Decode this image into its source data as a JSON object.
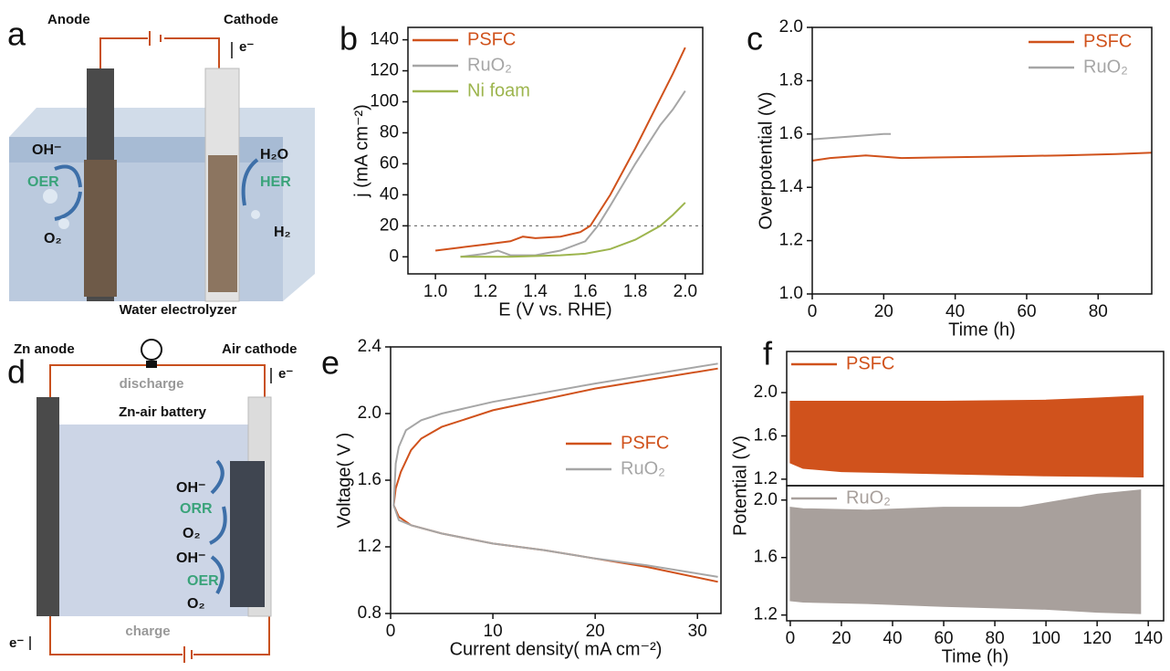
{
  "chart_data": [
    {
      "type": "line",
      "panel": "b",
      "xlabel": "E (V vs. RHE)",
      "ylabel": "j (mA cm⁻²)",
      "xlim": [
        0.89,
        2.07
      ],
      "ylim": [
        -11,
        148
      ],
      "xticks": [
        {
          "value": 1,
          "label": "1.0"
        },
        1.2,
        1.4,
        1.6,
        1.8,
        {
          "value": 2,
          "label": "2.0"
        }
      ],
      "yticks": [
        0,
        20,
        40,
        60,
        80,
        100,
        120,
        140
      ],
      "hline": 20,
      "legend": "upper left",
      "series": [
        {
          "name": "PSFC",
          "color": "#d0521c",
          "x": [
            1.0,
            1.1,
            1.2,
            1.3,
            1.35,
            1.4,
            1.5,
            1.58,
            1.62,
            1.7,
            1.8,
            1.9,
            1.95,
            2.0
          ],
          "values": [
            4,
            6,
            8,
            10,
            13,
            12,
            13,
            16,
            20,
            40,
            70,
            102,
            118,
            135
          ]
        },
        {
          "name": "RuO₂",
          "color": "#a6a6a6",
          "x": [
            1.1,
            1.2,
            1.25,
            1.3,
            1.4,
            1.5,
            1.6,
            1.65,
            1.7,
            1.8,
            1.9,
            1.95,
            2.0
          ],
          "values": [
            0,
            2,
            4,
            1,
            1,
            4,
            10,
            20,
            33,
            60,
            85,
            95,
            107
          ]
        },
        {
          "name": "Ni foam",
          "color": "#9db54e",
          "x": [
            1.1,
            1.3,
            1.5,
            1.6,
            1.7,
            1.8,
            1.9,
            1.95,
            2.0
          ],
          "values": [
            0,
            0,
            1,
            2,
            5,
            11,
            20,
            27,
            35
          ]
        }
      ]
    },
    {
      "type": "line",
      "panel": "c",
      "xlabel": "Time (h)",
      "ylabel": "Overpotential (V)",
      "xlim": [
        0,
        95
      ],
      "ylim": [
        1.0,
        2.0
      ],
      "xticks": [
        0,
        20,
        40,
        60,
        80
      ],
      "yticks": [
        {
          "value": 1,
          "label": "1.0"
        },
        1.2,
        1.4,
        1.6,
        1.8,
        {
          "value": 2,
          "label": "2.0"
        }
      ],
      "legend": "upper right",
      "series": [
        {
          "name": "PSFC",
          "color": "#d0521c",
          "x": [
            0,
            5,
            15,
            25,
            50,
            70,
            85,
            95
          ],
          "values": [
            1.5,
            1.51,
            1.52,
            1.51,
            1.515,
            1.52,
            1.525,
            1.53
          ]
        },
        {
          "name": "RuO₂",
          "color": "#a6a6a6",
          "x": [
            0,
            10,
            20,
            22
          ],
          "values": [
            1.58,
            1.59,
            1.6,
            1.6
          ]
        }
      ]
    },
    {
      "type": "line",
      "panel": "e",
      "xlabel": "Current density( mA cm⁻²)",
      "ylabel": "Voltage( V )",
      "xlim": [
        0,
        32.3
      ],
      "ylim": [
        0.8,
        2.4
      ],
      "xticks": [
        0,
        10,
        20,
        30
      ],
      "yticks": [
        0.8,
        1.2,
        1.6,
        {
          "value": 2,
          "label": "2.0"
        },
        2.4
      ],
      "legend": "center right",
      "series": [
        {
          "name": "PSFC",
          "color": "#d0521c",
          "x": [
            32,
            25,
            20,
            15,
            10,
            5,
            2,
            0.8,
            0.3,
            0.5,
            1,
            2,
            3,
            5,
            10,
            20,
            32
          ],
          "values": [
            0.99,
            1.08,
            1.13,
            1.18,
            1.22,
            1.28,
            1.33,
            1.38,
            1.45,
            1.55,
            1.65,
            1.78,
            1.85,
            1.92,
            2.02,
            2.15,
            2.27
          ]
        },
        {
          "name": "RuO₂",
          "color": "#a6a6a6",
          "x": [
            32,
            25,
            20,
            15,
            10,
            5,
            2,
            0.8,
            0.3,
            0.5,
            0.8,
            1.5,
            3,
            5,
            10,
            20,
            32
          ],
          "values": [
            1.02,
            1.09,
            1.13,
            1.18,
            1.22,
            1.28,
            1.33,
            1.36,
            1.45,
            1.7,
            1.8,
            1.9,
            1.96,
            2.0,
            2.07,
            2.18,
            2.3
          ]
        }
      ]
    },
    {
      "type": "band",
      "panel": "f",
      "xlim": [
        -1.4,
        146
      ],
      "ylim": [
        1.14,
        2.38
      ],
      "yticks": [
        1.2,
        1.6,
        {
          "value": 2,
          "label": "2.0"
        }
      ],
      "legend": "upper left",
      "series": [
        {
          "name": "PSFC",
          "color": "#d0521c",
          "x": [
            0,
            5,
            20,
            60,
            100,
            120,
            138
          ],
          "upper": [
            1.92,
            1.92,
            1.92,
            1.92,
            1.93,
            1.95,
            1.97
          ],
          "lower": [
            1.35,
            1.3,
            1.27,
            1.25,
            1.23,
            1.225,
            1.22
          ]
        }
      ]
    },
    {
      "type": "band",
      "xlabel": "Time (h)",
      "ylabel": "Potential (V)",
      "xlim": [
        -1.4,
        146
      ],
      "ylim": [
        1.16,
        2.1
      ],
      "xticks": [
        0,
        20,
        40,
        60,
        80,
        100,
        120,
        140
      ],
      "yticks": [
        1.2,
        1.6,
        {
          "value": 2,
          "label": "2.0"
        }
      ],
      "legend": "upper left",
      "series": [
        {
          "name": "RuO₂",
          "color": "#a8a09c",
          "x": [
            0,
            5,
            30,
            60,
            90,
            100,
            120,
            137
          ],
          "upper": [
            1.95,
            1.94,
            1.93,
            1.95,
            1.95,
            1.98,
            2.04,
            2.07
          ],
          "lower": [
            1.3,
            1.29,
            1.28,
            1.26,
            1.245,
            1.24,
            1.22,
            1.21
          ]
        }
      ]
    }
  ],
  "diagrams": {
    "a": {
      "panel": "a",
      "anode": "Anode",
      "cathode": "Cathode",
      "electron": "e⁻",
      "oh": "OH⁻",
      "oer": "OER",
      "o2": "O₂",
      "h2o": "H₂O",
      "her": "HER",
      "h2": "H₂",
      "caption": "Water electrolyzer"
    },
    "d": {
      "panel": "d",
      "anode": "Zn anode",
      "cathode": "Air cathode",
      "discharge": "discharge",
      "electron_top": "e⁻",
      "battery": "Zn-air battery",
      "oh1": "OH⁻",
      "orr": "ORR",
      "o2a": "O₂",
      "oh2": "OH⁻",
      "oer": "OER",
      "o2b": "O₂",
      "charge": "charge",
      "electron_bottom": "e⁻"
    }
  }
}
